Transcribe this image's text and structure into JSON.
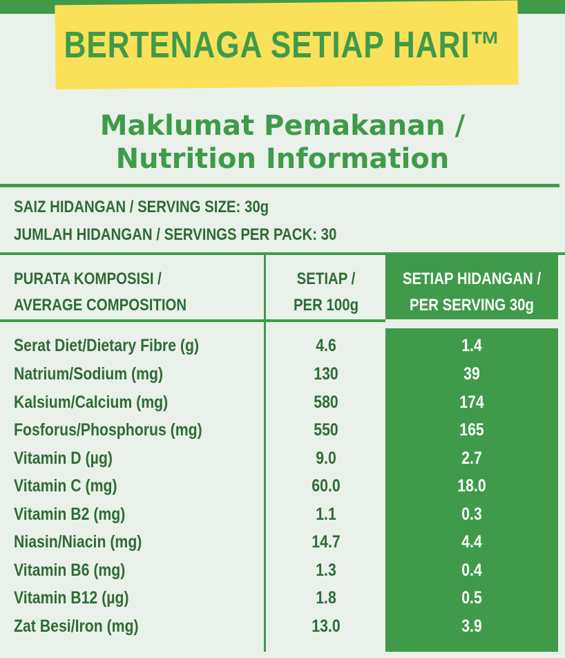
{
  "banner": {
    "text": "BERTENAGA SETIAP HARI™"
  },
  "title": {
    "line1": "Maklumat Pemakanan /",
    "line2": "Nutrition Information"
  },
  "serving": {
    "size": "SAIZ HIDANGAN / SERVING SIZE: 30g",
    "per_pack": "JUMLAH HIDANGAN / SERVINGS PER PACK: 30"
  },
  "table": {
    "headers": {
      "composition_1": "PURATA KOMPOSISI /",
      "composition_2": "AVERAGE COMPOSITION",
      "per100_1": "SETIAP /",
      "per100_2": "PER 100g",
      "perserving_1": "SETIAP HIDANGAN /",
      "perserving_2": "PER SERVING 30g"
    },
    "rows": [
      {
        "nutrient": "Serat Diet/Dietary Fibre (g)",
        "per100": "4.6",
        "perserving": "1.4"
      },
      {
        "nutrient": "Natrium/Sodium (mg)",
        "per100": "130",
        "perserving": "39"
      },
      {
        "nutrient": "Kalsium/Calcium (mg)",
        "per100": "580",
        "perserving": "174"
      },
      {
        "nutrient": "Fosforus/Phosphorus (mg)",
        "per100": "550",
        "perserving": "165"
      },
      {
        "nutrient": "Vitamin D (µg)",
        "per100": "9.0",
        "perserving": "2.7"
      },
      {
        "nutrient": "Vitamin C (mg)",
        "per100": "60.0",
        "perserving": "18.0"
      },
      {
        "nutrient": "Vitamin B2 (mg)",
        "per100": "1.1",
        "perserving": "0.3"
      },
      {
        "nutrient": "Niasin/Niacin (mg)",
        "per100": "14.7",
        "perserving": "4.4"
      },
      {
        "nutrient": "Vitamin B6 (mg)",
        "per100": "1.3",
        "perserving": "0.4"
      },
      {
        "nutrient": "Vitamin B12 (µg)",
        "per100": "1.8",
        "perserving": "0.5"
      },
      {
        "nutrient": "Zat Besi/Iron (mg)",
        "per100": "13.0",
        "perserving": "3.9"
      }
    ]
  },
  "colors": {
    "green": "#3f9a4a",
    "dark_green_text": "#2e6b35",
    "yellow": "#fbe05a",
    "background": "#eaf1ea"
  }
}
